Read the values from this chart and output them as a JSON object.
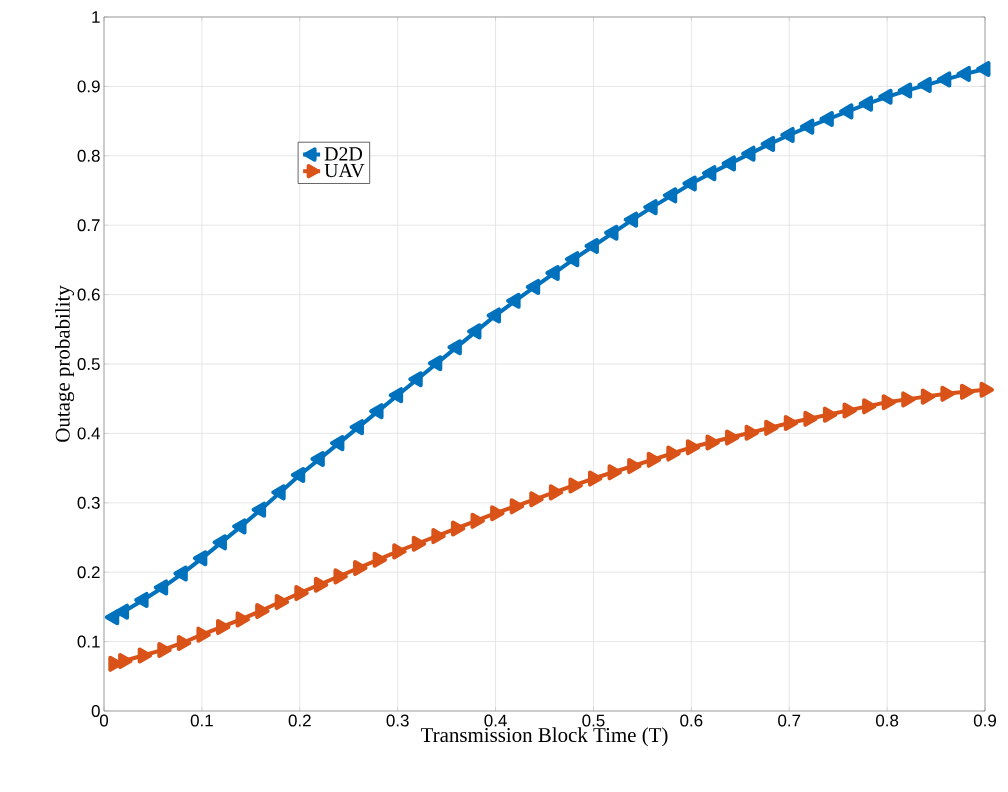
{
  "chart_data": {
    "type": "line",
    "xlabel": "Transmission Block Time (T)",
    "ylabel": "Outage probability",
    "x": [
      0.01,
      0.02,
      0.04,
      0.06,
      0.08,
      0.1,
      0.12,
      0.14,
      0.16,
      0.18,
      0.2,
      0.22,
      0.24,
      0.26,
      0.28,
      0.3,
      0.32,
      0.34,
      0.36,
      0.38,
      0.4,
      0.42,
      0.44,
      0.46,
      0.48,
      0.5,
      0.52,
      0.54,
      0.56,
      0.58,
      0.6,
      0.62,
      0.64,
      0.66,
      0.68,
      0.7,
      0.72,
      0.74,
      0.76,
      0.78,
      0.8,
      0.82,
      0.84,
      0.86,
      0.88,
      0.9
    ],
    "series": [
      {
        "name": "D2D",
        "color": "#0072bd",
        "marker": "triangle",
        "values": [
          0.135,
          0.143,
          0.16,
          0.178,
          0.198,
          0.22,
          0.243,
          0.266,
          0.29,
          0.315,
          0.34,
          0.363,
          0.386,
          0.409,
          0.432,
          0.455,
          0.478,
          0.501,
          0.524,
          0.547,
          0.57,
          0.591,
          0.611,
          0.631,
          0.651,
          0.67,
          0.689,
          0.708,
          0.726,
          0.743,
          0.76,
          0.775,
          0.789,
          0.803,
          0.817,
          0.83,
          0.842,
          0.853,
          0.864,
          0.875,
          0.885,
          0.894,
          0.902,
          0.91,
          0.918,
          0.925
        ]
      },
      {
        "name": "UAV",
        "color": "#d95319",
        "marker": "triangle",
        "values": [
          0.068,
          0.072,
          0.08,
          0.088,
          0.098,
          0.11,
          0.121,
          0.132,
          0.144,
          0.157,
          0.17,
          0.182,
          0.194,
          0.206,
          0.218,
          0.23,
          0.241,
          0.252,
          0.263,
          0.274,
          0.285,
          0.295,
          0.305,
          0.315,
          0.325,
          0.335,
          0.344,
          0.353,
          0.362,
          0.371,
          0.38,
          0.387,
          0.394,
          0.401,
          0.408,
          0.415,
          0.421,
          0.427,
          0.433,
          0.439,
          0.445,
          0.449,
          0.453,
          0.457,
          0.46,
          0.463
        ]
      }
    ],
    "xlim": [
      0,
      0.9
    ],
    "ylim": [
      0,
      1
    ],
    "xticks": [
      0,
      0.1,
      0.2,
      0.3,
      0.4,
      0.5,
      0.6,
      0.7,
      0.8,
      0.9
    ],
    "yticks": [
      0,
      0.1,
      0.2,
      0.3,
      0.4,
      0.5,
      0.6,
      0.7,
      0.8,
      0.9,
      1
    ],
    "grid": true,
    "legend": "top left",
    "line_style": "solid"
  }
}
